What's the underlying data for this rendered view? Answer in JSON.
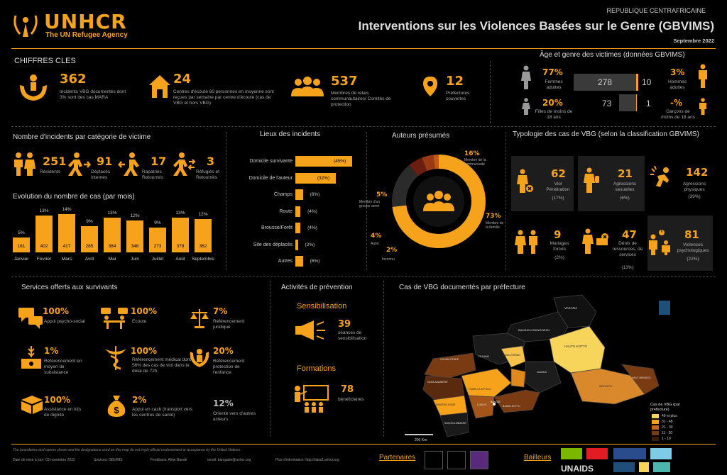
{
  "header": {
    "logo_text": "UNHCR",
    "logo_sub": "The UN Refugee Agency",
    "country": "REPUBLIQUE CENTRAFRICAINE",
    "title": "Interventions sur les Violences Basées sur le Genre (GBVIMS)",
    "date": "Septembre 2022"
  },
  "chiffres": {
    "title": "CHIFFRES CLES",
    "items": [
      {
        "value": "362",
        "label": "Incidents VBG documentés dont 3% sont des cas MARA"
      },
      {
        "value": "24",
        "label": "Centres d'écoute 60 personnes en moyenne sont reçues par semaine par centre d'écoute (cas de VBG et hors VBG)"
      },
      {
        "value": "537",
        "label": "Membres de relais communautaires/ Comités de protection"
      },
      {
        "value": "12",
        "label": "Préfectures couvertes"
      }
    ]
  },
  "age": {
    "title": "Âge et genre des victimes (données GBVIMS)",
    "femmes_adultes_pct": "77%",
    "femmes_adultes_lbl": "Femmes adultes",
    "filles_pct": "20%",
    "filles_lbl": "Filles de moins de 18 ans",
    "hommes_pct": "3%",
    "hommes_lbl": "Hommes adultes",
    "garcons_pct": "-%",
    "garcons_lbl": "Garçons de moins de 18 ans",
    "v1": "278",
    "v2": "10",
    "v3": "73",
    "v4": "1"
  },
  "categorie": {
    "title": "Nombre d'incidents par catégorie de victime",
    "items": [
      {
        "value": "251",
        "label": "Résidents"
      },
      {
        "value": "91",
        "label": "Déplacés internes"
      },
      {
        "value": "17",
        "label": "Rapatriés Retournés"
      },
      {
        "value": "3",
        "label": "Réfugiés et Retournés"
      }
    ]
  },
  "evolution": {
    "title": "Evolution du nombre de cas (par mois)"
  },
  "lieux": {
    "title": "Lieux des incidents",
    "rows": [
      {
        "label": "Domicile survivante",
        "pct": "(45%)",
        "value": 45
      },
      {
        "label": "Domicile de l'auteur",
        "pct": "(32%)",
        "value": 32
      },
      {
        "label": "Champs",
        "pct": "(6%)",
        "value": 6
      },
      {
        "label": "Route",
        "pct": "(4%)",
        "value": 4
      },
      {
        "label": "Brousse/Forêt",
        "pct": "(4%)",
        "value": 4
      },
      {
        "label": "Site des déplacés",
        "pct": "(2%)",
        "value": 2
      },
      {
        "label": "Autres",
        "pct": "(6%)",
        "value": 6
      }
    ]
  },
  "auteurs": {
    "title": "Auteurs présumés",
    "labels": [
      {
        "pct": "16%",
        "label": "Membre de la communauté"
      },
      {
        "pct": "73%",
        "label": "Membre de la famille"
      },
      {
        "pct": "5%",
        "label": "Membre d'un groupe armé"
      },
      {
        "pct": "4%",
        "label": "Autre"
      },
      {
        "pct": "2%",
        "label": "Inconnu"
      }
    ]
  },
  "typologie": {
    "title": "Typologie des cas de VBG (selon la classification GBVIMS)",
    "items": [
      {
        "value": "62",
        "label": "Viol Pénétration",
        "pct": "(17%)"
      },
      {
        "value": "21",
        "label": "Agressions sexuelles",
        "pct": "(6%)"
      },
      {
        "value": "142",
        "label": "Agressions physiques",
        "pct": "(39%)"
      },
      {
        "value": "9",
        "label": "Mariages forcés",
        "pct": "(2%)"
      },
      {
        "value": "47",
        "label": "Dénis de ressources, de services",
        "pct": "(13%)"
      },
      {
        "value": "81",
        "label": "Violences psychologiques",
        "pct": "(22%)"
      }
    ]
  },
  "services": {
    "title": "Services offerts aux survivants",
    "items": [
      {
        "value": "100%",
        "label": "Appui psycho-social"
      },
      {
        "value": "100%",
        "label": "Ecoute"
      },
      {
        "value": "7%",
        "label": "Référencement juridique"
      },
      {
        "value": "1%",
        "label": "Référencement en moyen de subsistance"
      },
      {
        "value": "100%",
        "label": "Référencement médical dont 56% des cas de viol dans le délai de 72h"
      },
      {
        "value": "20%",
        "label": "Référencement protection de l'enfance"
      },
      {
        "value": "100%",
        "label": "Assistance en kits de dignité"
      },
      {
        "value": "2%",
        "label": "Appui en cash (transport vers les centres de santé)"
      },
      {
        "value": "12%",
        "label": "Orienté vers d'autres acteurs"
      }
    ]
  },
  "prevention": {
    "title": "Activités de prévention",
    "sensib_title": "Sensibilisation",
    "sensib_value": "39",
    "sensib_label": "séances de sensibilisation",
    "form_title": "Formations",
    "form_value": "78",
    "form_label": "bénéficiaires"
  },
  "carte": {
    "title": "Cas de VBG documentés par préfecture",
    "legend_title": "Cas de VBG (par préfecture)",
    "legend": [
      "49 et plus",
      "31 - 48",
      "21 - 30",
      "11 - 20",
      "1 - 10"
    ],
    "scale": "200 Km"
  },
  "footer": {
    "disclaimer": "The boundaries and names shown and the designations used on this map do not imply official endorsement or acceptance by the United Nations",
    "update": "Date de mise à jour: 03 novembre 2022",
    "source": "Sources: GBVIMS",
    "feedback": "Feedback: Aline Bandé",
    "email": "email: bangaale@unhcr.org",
    "info": "Plus d'information: http://data2.unhcr.org",
    "partenaires": "Partenaires",
    "bailleurs": "Bailleurs",
    "unaids": "UNAIDS"
  },
  "chart_data": {
    "type": "bar",
    "categories": [
      "Janvier",
      "Février",
      "Mars",
      "Avril",
      "Mai",
      "Juin",
      "Juillet",
      "Août",
      "Septembre"
    ],
    "values": [
      161,
      402,
      417,
      285,
      384,
      346,
      273,
      378,
      362
    ],
    "labels_pct": [
      "5%",
      "13%",
      "14%",
      "9%",
      "13%",
      "12%",
      "9%",
      "13%",
      "12%"
    ],
    "title": "Evolution du nombre de cas (par mois)",
    "ylim": [
      0,
      450
    ]
  },
  "colors": {
    "accent": "#f7a21b",
    "background": "#000000"
  }
}
